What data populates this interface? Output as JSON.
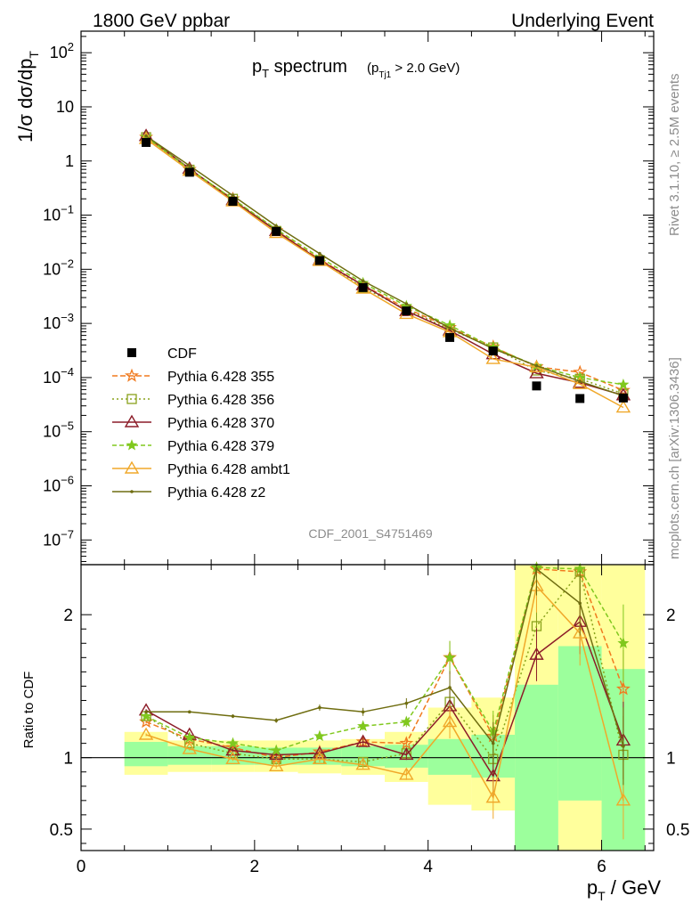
{
  "header": {
    "left": "1800 GeV ppbar",
    "right": "Underlying Event"
  },
  "side": {
    "rivet": "Rivet 3.1.10, ≥ 2.5M events",
    "mcplots": "mcplots.cern.ch [arXiv:1306.3436]"
  },
  "analysis_label": "CDF_2001_S4751469",
  "colors": {
    "cdf": "#000000",
    "p355": "#f07a1e",
    "p356": "#8aa21c",
    "p370": "#8c1c28",
    "p379": "#80c81e",
    "ambt1": "#f0a82a",
    "z2": "#6f6d10",
    "band_inner": "#9cff9c",
    "band_outer": "#ffff9c"
  },
  "chart_data": [
    {
      "type": "line",
      "name": "main",
      "title_main": "p",
      "title_main_sub": "T",
      "title_main_rest": " spectrum",
      "title_cut": "(p",
      "title_cut_sub": "Tj1",
      "title_cut_rest": " > 2.0 GeV)",
      "ylabel": "1/σ dσ/dp",
      "ylabel_sub": "T",
      "yscale": "log",
      "ylim": [
        3.5e-08,
        250
      ],
      "xlim": [
        0,
        6.6
      ],
      "yticks": [
        {
          "v": 1e-07,
          "base": "10",
          "exp": "−7"
        },
        {
          "v": 1e-06,
          "base": "10",
          "exp": "−6"
        },
        {
          "v": 1e-05,
          "base": "10",
          "exp": "−5"
        },
        {
          "v": 0.0001,
          "base": "10",
          "exp": "−4"
        },
        {
          "v": 0.001,
          "base": "10",
          "exp": "−3"
        },
        {
          "v": 0.01,
          "base": "10",
          "exp": "−2"
        },
        {
          "v": 0.1,
          "base": "10",
          "exp": "−1"
        },
        {
          "v": 1,
          "base": "1",
          "exp": ""
        },
        {
          "v": 10,
          "base": "10",
          "exp": ""
        },
        {
          "v": 100,
          "base": "10",
          "exp": "2"
        }
      ],
      "x": [
        0.75,
        1.25,
        1.75,
        2.25,
        2.75,
        3.25,
        3.75,
        4.25,
        4.75,
        5.25,
        5.75,
        6.25
      ],
      "data": {
        "name": "CDF",
        "values": [
          2.2,
          0.62,
          0.18,
          0.05,
          0.0145,
          0.0046,
          0.0017,
          0.00055,
          0.00031,
          7e-05,
          4.1e-05,
          4.2e-05
        ]
      },
      "series": [
        {
          "key": "p355",
          "name": "Pythia 6.428 355",
          "marker": "star-open",
          "dash": "6,3",
          "values": [
            2.75,
            0.7,
            0.2,
            0.052,
            0.0153,
            0.0051,
            0.0019,
            0.00084,
            0.00037,
            0.000158,
            0.000125,
            5.8e-05
          ]
        },
        {
          "key": "p356",
          "name": "Pythia 6.428 356",
          "marker": "square-open",
          "dash": "2,3",
          "values": [
            2.75,
            0.69,
            0.2,
            0.051,
            0.0147,
            0.0046,
            0.0018,
            0.00078,
            0.00036,
            0.000135,
            9.5e-05,
            5e-05
          ]
        },
        {
          "key": "p370",
          "name": "Pythia 6.428 370",
          "marker": "triangle-open",
          "dash": "",
          "values": [
            2.9,
            0.72,
            0.19,
            0.051,
            0.0147,
            0.0051,
            0.0017,
            0.00074,
            0.00027,
            0.00012,
            8e-05,
            4.7e-05
          ]
        },
        {
          "key": "p379",
          "name": "Pythia 6.428 379",
          "marker": "star-filled",
          "dash": "5,3",
          "values": [
            2.8,
            0.71,
            0.2,
            0.055,
            0.0165,
            0.0056,
            0.0021,
            0.00092,
            0.00036,
            0.000164,
            0.0001,
            7.4e-05
          ]
        },
        {
          "key": "ambt1",
          "name": "Pythia 6.428 ambt1",
          "marker": "triangle-open",
          "dash": "",
          "values": [
            2.55,
            0.66,
            0.18,
            0.047,
            0.0143,
            0.0044,
            0.0015,
            0.00069,
            0.00022,
            0.000155,
            7.6e-05,
            2.8e-05
          ]
        },
        {
          "key": "z2",
          "name": "Pythia 6.428 z2",
          "marker": "dot",
          "dash": "",
          "values": [
            2.9,
            0.82,
            0.23,
            0.063,
            0.0195,
            0.0061,
            0.0023,
            0.00082,
            0.00034,
            0.000165,
            8.5e-05,
            4.6e-05
          ]
        }
      ]
    },
    {
      "type": "line",
      "name": "ratio",
      "ylabel": "Ratio to CDF",
      "xlabel": "p",
      "xlabel_sub": "T",
      "xlabel_rest": " / GeV",
      "ylim": [
        0.35,
        2.35
      ],
      "xlim": [
        0,
        6.6
      ],
      "xticks": [
        0,
        2,
        4,
        6
      ],
      "yticks": [
        0.5,
        1,
        2
      ],
      "reference": 1,
      "band_bins": [
        0.5,
        1.0,
        1.5,
        2.0,
        2.5,
        3.0,
        3.5,
        4.0,
        4.5,
        5.0,
        5.5,
        6.0,
        6.5
      ],
      "band_inner": [
        [
          0.94,
          1.11
        ],
        [
          0.95,
          1.08
        ],
        [
          0.95,
          1.08
        ],
        [
          0.95,
          1.07
        ],
        [
          0.95,
          1.07
        ],
        [
          0.94,
          1.08
        ],
        [
          0.93,
          1.09
        ],
        [
          0.88,
          1.13
        ],
        [
          0.86,
          1.16
        ],
        [
          0.35,
          1.51
        ],
        [
          0.7,
          1.78
        ],
        [
          0.35,
          1.62
        ]
      ],
      "band_outer": [
        [
          0.88,
          1.18
        ],
        [
          0.9,
          1.12
        ],
        [
          0.9,
          1.12
        ],
        [
          0.9,
          1.12
        ],
        [
          0.89,
          1.12
        ],
        [
          0.88,
          1.13
        ],
        [
          0.83,
          1.18
        ],
        [
          0.67,
          1.35
        ],
        [
          0.63,
          1.42
        ],
        [
          0.35,
          2.35
        ],
        [
          0.35,
          2.35
        ],
        [
          0.35,
          2.35
        ]
      ],
      "x": [
        0.75,
        1.25,
        1.75,
        2.25,
        2.75,
        3.25,
        3.75,
        4.25,
        4.75,
        5.25,
        5.75,
        6.25
      ],
      "series": [
        {
          "key": "p355",
          "values": [
            1.25,
            1.13,
            1.07,
            1.0,
            1.04,
            1.11,
            1.1,
            1.7,
            1.15,
            2.32,
            2.3,
            1.48
          ]
        },
        {
          "key": "p356",
          "values": [
            1.29,
            1.1,
            1.03,
            0.99,
            0.99,
            0.97,
            1.03,
            1.39,
            0.99,
            1.92,
            2.3,
            1.02
          ]
        },
        {
          "key": "p370",
          "values": [
            1.33,
            1.16,
            1.05,
            1.02,
            1.03,
            1.11,
            1.02,
            1.36,
            0.87,
            1.72,
            1.95,
            1.12
          ]
        },
        {
          "key": "p379",
          "values": [
            1.29,
            1.14,
            1.1,
            1.05,
            1.15,
            1.22,
            1.25,
            1.7,
            1.18,
            2.33,
            2.32,
            1.8
          ]
        },
        {
          "key": "ambt1",
          "values": [
            1.16,
            1.06,
            0.99,
            0.94,
            0.99,
            0.95,
            0.88,
            1.25,
            0.72,
            2.2,
            1.87,
            0.7
          ]
        },
        {
          "key": "z2",
          "values": [
            1.32,
            1.32,
            1.29,
            1.26,
            1.35,
            1.32,
            1.38,
            1.49,
            1.1,
            2.32,
            2.08,
            1.08
          ]
        }
      ]
    }
  ]
}
